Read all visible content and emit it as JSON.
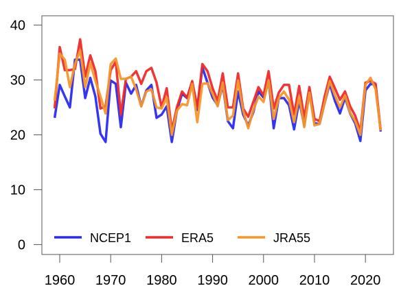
{
  "chart_data": {
    "type": "line",
    "title": "",
    "xlabel": "",
    "ylabel": "",
    "xlim": [
      1956.5,
      2025.5
    ],
    "ylim": [
      -1.8,
      41.7
    ],
    "x_ticks": [
      1960,
      1970,
      1980,
      1990,
      2000,
      2010,
      2020
    ],
    "y_ticks": [
      0,
      10,
      20,
      30,
      40
    ],
    "grid": false,
    "legend_placement": "bottom-inside",
    "x_start": 1959,
    "series": [
      {
        "name": "NCEP1",
        "color": "#2b2bf0",
        "values": [
          23.1,
          29.1,
          27.0,
          25.0,
          33.7,
          33.7,
          26.7,
          30.4,
          27.0,
          20.2,
          18.7,
          29.9,
          29.3,
          21.4,
          29.5,
          27.5,
          29.1,
          25.2,
          28.1,
          29.1,
          23.1,
          23.7,
          25.2,
          18.7,
          24.4,
          27.5,
          26.7,
          29.5,
          24.5,
          32.3,
          29.5,
          26.8,
          25.4,
          29.1,
          22.5,
          21.2,
          27.9,
          23.7,
          21.7,
          24.1,
          27.9,
          26.8,
          29.9,
          21.2,
          26.7,
          26.7,
          25.4,
          21.0,
          26.2,
          21.7,
          27.9,
          22.1,
          22.0,
          25.8,
          29.3,
          26.2,
          23.9,
          26.8,
          23.9,
          22.1,
          18.9,
          28.1,
          29.3,
          29.1,
          20.6
        ]
      },
      {
        "name": "ERA5",
        "color": "#ee2a2a",
        "values": [
          24.8,
          36.0,
          31.8,
          31.8,
          32.0,
          37.4,
          30.6,
          34.5,
          31.6,
          24.8,
          25.2,
          31.8,
          33.3,
          23.7,
          30.2,
          30.6,
          31.6,
          29.3,
          31.6,
          32.2,
          29.5,
          25.0,
          28.5,
          20.8,
          25.0,
          27.9,
          26.8,
          29.8,
          25.0,
          32.9,
          31.6,
          28.5,
          26.2,
          31.2,
          25.0,
          25.0,
          31.2,
          24.8,
          23.3,
          26.0,
          28.7,
          27.2,
          31.6,
          24.8,
          27.7,
          29.1,
          29.1,
          23.7,
          28.9,
          23.1,
          28.7,
          22.9,
          22.5,
          27.0,
          30.6,
          28.5,
          26.4,
          27.9,
          25.2,
          23.5,
          20.6,
          29.5,
          29.8,
          29.3,
          20.8
        ]
      },
      {
        "name": "JRA55",
        "color": "#f5962a",
        "values": [
          26.2,
          34.8,
          33.7,
          28.7,
          32.9,
          35.4,
          28.7,
          33.1,
          29.9,
          27.0,
          23.9,
          32.9,
          33.9,
          30.2,
          30.2,
          30.6,
          28.3,
          25.2,
          27.9,
          28.3,
          25.0,
          24.8,
          26.8,
          20.0,
          24.4,
          25.6,
          25.4,
          29.3,
          22.3,
          29.3,
          29.4,
          27.5,
          25.2,
          29.5,
          22.7,
          23.5,
          29.9,
          24.4,
          21.2,
          24.5,
          27.0,
          26.0,
          29.9,
          22.9,
          26.7,
          27.9,
          26.4,
          22.3,
          27.0,
          21.4,
          27.7,
          21.7,
          22.0,
          25.8,
          29.8,
          27.2,
          25.0,
          27.2,
          24.0,
          22.5,
          20.0,
          29.1,
          30.4,
          28.3,
          20.8
        ]
      }
    ]
  }
}
